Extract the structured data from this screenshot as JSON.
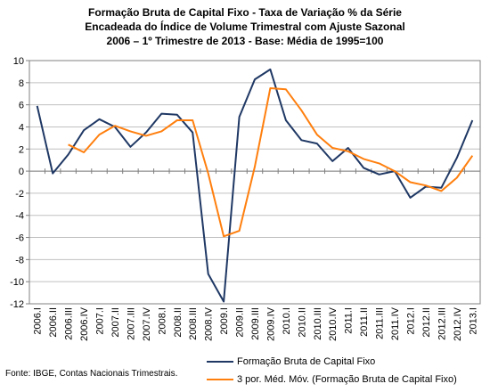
{
  "chart_data": {
    "type": "line",
    "title": [
      "Formação Bruta de Capital Fixo - Taxa de Variação % da Série",
      "Encadeada do Índice de Volume Trimestral com Ajuste Sazonal",
      "2006 – 1º Trimestre de 2013 - Base: Média de 1995=100"
    ],
    "xlabel": "",
    "ylabel": "",
    "ylim": [
      -12,
      10
    ],
    "yticks": [
      -12,
      -10,
      -8,
      -6,
      -4,
      -2,
      0,
      2,
      4,
      6,
      8,
      10
    ],
    "grid": "horizontal",
    "legend_position": "bottom-right",
    "categories": [
      "2006.I",
      "2006.II",
      "2006.III",
      "2006.IV",
      "2007.I",
      "2007.II",
      "2007.III",
      "2007.IV",
      "2008.I",
      "2008.II",
      "2008.III",
      "2008.IV",
      "2009.I",
      "2009.II",
      "2009.III",
      "2009.IV",
      "2010.I",
      "2010.II",
      "2010.III",
      "2010.IV",
      "2011.I",
      "2011.II",
      "2011.III",
      "2011.IV",
      "2012.I",
      "2012.II",
      "2012.III",
      "2012.IV",
      "2013.I"
    ],
    "series": [
      {
        "name": "Formação Bruta de Capital Fixo",
        "color": "#1f3864",
        "values": [
          5.9,
          -0.2,
          1.5,
          3.7,
          4.7,
          4.0,
          2.2,
          3.5,
          5.2,
          5.1,
          3.5,
          -9.3,
          -11.8,
          4.9,
          8.3,
          9.2,
          4.6,
          2.8,
          2.5,
          0.9,
          2.1,
          0.3,
          -0.3,
          0.0,
          -2.4,
          -1.4,
          -1.5,
          1.2,
          4.6
        ]
      },
      {
        "name": "3 por. Méd. Móv. (Formação Bruta de Capital Fixo)",
        "color": "#ff7f0e",
        "values": [
          null,
          null,
          2.4,
          1.7,
          3.3,
          4.1,
          3.6,
          3.2,
          3.6,
          4.6,
          4.6,
          -0.2,
          -5.9,
          -5.4,
          0.4,
          7.5,
          7.4,
          5.5,
          3.3,
          2.1,
          1.8,
          1.1,
          0.7,
          0.0,
          -1.0,
          -1.3,
          -1.8,
          -0.6,
          1.4
        ]
      }
    ]
  },
  "source": "Fonte: IBGE, Contas Nacionais Trimestrais."
}
